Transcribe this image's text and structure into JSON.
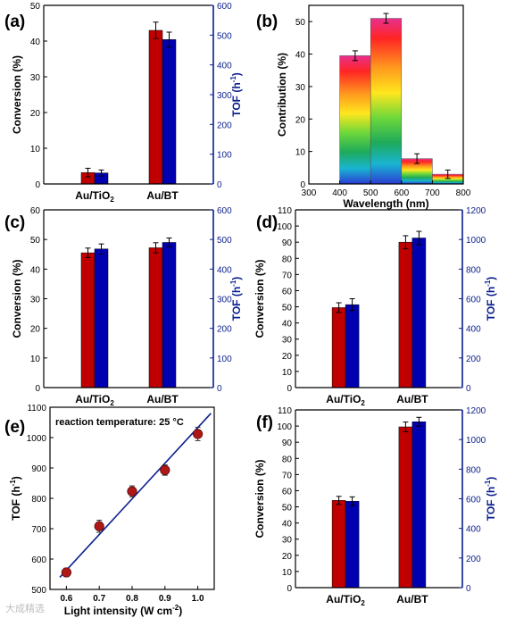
{
  "colors": {
    "conversion": "#c00000",
    "tof": "#0000b0",
    "right_axis": "#0a1e8c",
    "axis": "#000000",
    "fit_line": "#0a1e8c",
    "marker": "#b01818"
  },
  "watermark": "大成精选",
  "chart_data": [
    {
      "panel": "(a)",
      "type": "bar",
      "categories": [
        "Au/TiO",
        "Au/BT"
      ],
      "category_subscripts": [
        "2",
        ""
      ],
      "ylabel": "Conversion (%)",
      "ylim": [
        0,
        50
      ],
      "yticks": [
        "0",
        "10",
        "20",
        "30",
        "40",
        "50"
      ],
      "ylabel_right": "TOF (h",
      "ylabel_right_sup": "-1",
      "ylabel_right_close": ")",
      "ylim_right": [
        0,
        600
      ],
      "yticks_right": [
        "0",
        "100",
        "200",
        "300",
        "400",
        "500",
        "600"
      ],
      "series": [
        {
          "name": "Conversion",
          "axis": "left",
          "values": [
            3.2,
            43.0
          ],
          "errors": [
            1.2,
            2.3
          ]
        },
        {
          "name": "TOF",
          "axis": "right",
          "values": [
            37,
            485
          ],
          "errors": [
            10,
            25
          ]
        }
      ]
    },
    {
      "panel": "(b)",
      "type": "bar",
      "xlabel": "Wavelength (nm)",
      "ylabel": "Contribution (%)",
      "xlim": [
        300,
        800
      ],
      "xticks": [
        "300",
        "400",
        "500",
        "600",
        "700",
        "800"
      ],
      "ylim": [
        0,
        55
      ],
      "yticks": [
        "0",
        "10",
        "20",
        "30",
        "40",
        "50"
      ],
      "bins": [
        [
          400,
          500
        ],
        [
          500,
          600
        ],
        [
          600,
          700
        ],
        [
          700,
          800
        ]
      ],
      "values": [
        39.5,
        51.0,
        7.8,
        3.0
      ],
      "errors": [
        1.5,
        1.5,
        1.5,
        1.3
      ]
    },
    {
      "panel": "(c)",
      "type": "bar",
      "categories": [
        "Au/TiO",
        "Au/BT"
      ],
      "category_subscripts": [
        "2",
        ""
      ],
      "ylabel": "Conversion (%)",
      "ylim": [
        0,
        60
      ],
      "yticks": [
        "0",
        "10",
        "20",
        "30",
        "40",
        "50",
        "60"
      ],
      "ylabel_right": "TOF (h",
      "ylabel_right_sup": "-1",
      "ylabel_right_close": ")",
      "ylim_right": [
        0,
        600
      ],
      "yticks_right": [
        "0",
        "100",
        "200",
        "300",
        "400",
        "500",
        "600"
      ],
      "series": [
        {
          "name": "Conversion",
          "axis": "left",
          "values": [
            45.5,
            47.2
          ],
          "errors": [
            1.6,
            1.7
          ]
        },
        {
          "name": "TOF",
          "axis": "right",
          "values": [
            468,
            490
          ],
          "errors": [
            17,
            15
          ]
        }
      ]
    },
    {
      "panel": "(d)",
      "type": "bar",
      "categories": [
        "Au/TiO",
        "Au/BT"
      ],
      "category_subscripts": [
        "2",
        ""
      ],
      "ylabel": "Conversion (%)",
      "ylim": [
        0,
        110
      ],
      "yticks": [
        "0",
        "10",
        "20",
        "30",
        "40",
        "50",
        "60",
        "70",
        "80",
        "90",
        "100",
        "110"
      ],
      "ylabel_right": "TOF (h",
      "ylabel_right_sup": "-1",
      "ylabel_right_close": ")",
      "ylim_right": [
        0,
        1200
      ],
      "yticks_right": [
        "0",
        "200",
        "400",
        "600",
        "800",
        "1000",
        "1200"
      ],
      "series": [
        {
          "name": "Conversion",
          "axis": "left",
          "values": [
            49.5,
            90.0
          ],
          "errors": [
            3.0,
            4.0
          ]
        },
        {
          "name": "TOF",
          "axis": "right",
          "values": [
            560,
            1010
          ],
          "errors": [
            40,
            45
          ]
        }
      ]
    },
    {
      "panel": "(e)",
      "type": "scatter",
      "annotation": "reaction temperature: 25 °C",
      "xlabel": "Light intensity (W cm",
      "xlabel_sup": "-2",
      "xlabel_close": ")",
      "ylabel": "TOF (h",
      "ylabel_sup": "-1",
      "ylabel_close": ")",
      "xlim": [
        0.55,
        1.05
      ],
      "xticks": [
        "0.6",
        "0.7",
        "0.8",
        "0.9",
        "1.0"
      ],
      "ylim": [
        500,
        1100
      ],
      "yticks": [
        "500",
        "600",
        "700",
        "800",
        "900",
        "1000",
        "1100"
      ],
      "points": [
        {
          "x": 0.6,
          "y": 556,
          "err": 14
        },
        {
          "x": 0.7,
          "y": 708,
          "err": 20
        },
        {
          "x": 0.8,
          "y": 823,
          "err": 18
        },
        {
          "x": 0.9,
          "y": 893,
          "err": 17
        },
        {
          "x": 1.0,
          "y": 1012,
          "err": 22
        }
      ],
      "fit": [
        [
          0.58,
          540
        ],
        [
          1.04,
          1080
        ]
      ]
    },
    {
      "panel": "(f)",
      "type": "bar",
      "categories": [
        "Au/TiO",
        "Au/BT"
      ],
      "category_subscripts": [
        "2",
        ""
      ],
      "ylabel": "Conversion (%)",
      "ylim": [
        0,
        110
      ],
      "yticks": [
        "0",
        "10",
        "20",
        "30",
        "40",
        "50",
        "60",
        "70",
        "80",
        "90",
        "100",
        "110"
      ],
      "ylabel_right": "TOF (h",
      "ylabel_right_sup": "-1",
      "ylabel_right_close": ")",
      "ylim_right": [
        0,
        1200
      ],
      "yticks_right": [
        "0",
        "200",
        "400",
        "600",
        "800",
        "1000",
        "1200"
      ],
      "series": [
        {
          "name": "Conversion",
          "axis": "left",
          "values": [
            54.0,
            99.5
          ],
          "errors": [
            2.5,
            3.0
          ]
        },
        {
          "name": "TOF",
          "axis": "right",
          "values": [
            583,
            1120
          ],
          "errors": [
            30,
            30
          ]
        }
      ]
    }
  ]
}
